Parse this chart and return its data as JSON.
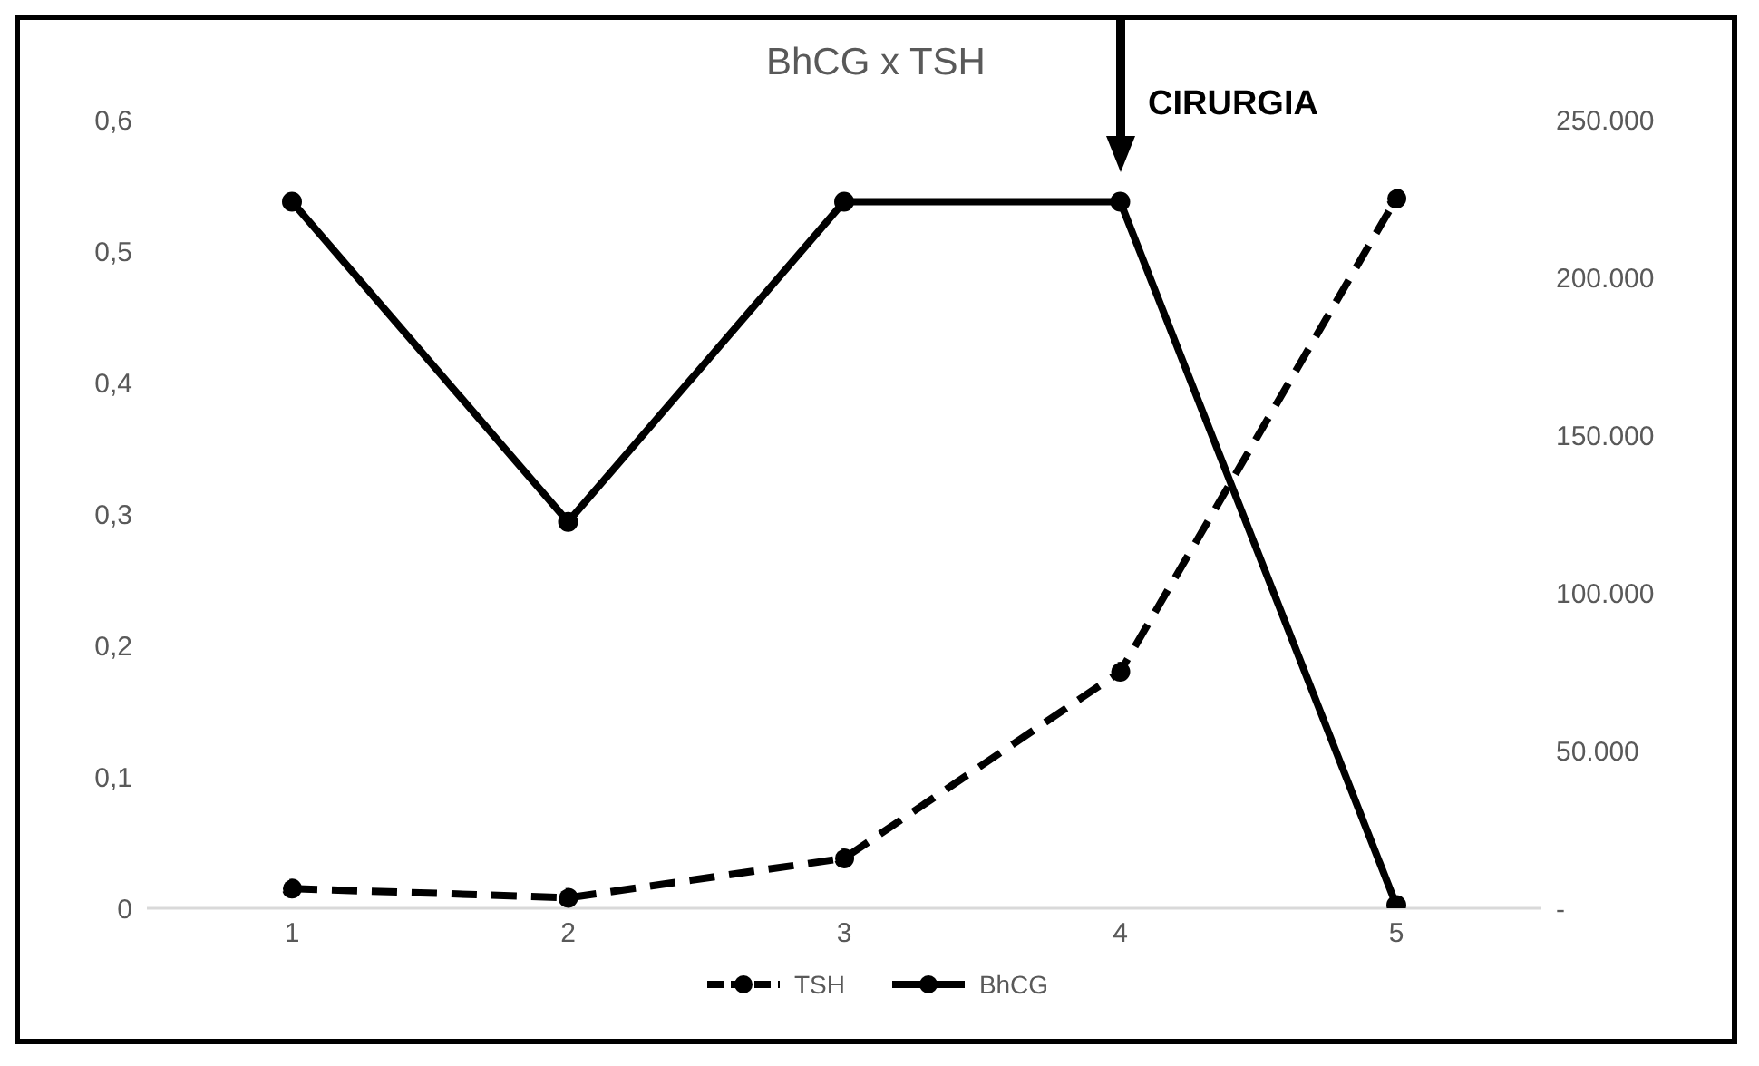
{
  "chart_data": {
    "type": "line",
    "title": "BhCG x TSH",
    "categories": [
      "1",
      "2",
      "3",
      "4",
      "5"
    ],
    "series": [
      {
        "name": "TSH",
        "color": "#000000",
        "line_style": "dashed",
        "values": [
          0.015,
          0.008,
          0.038,
          0.18,
          0.54
        ]
      },
      {
        "name": "BhCG",
        "color": "#000000",
        "line_style": "solid",
        "axis": "y2",
        "values": [
          224000,
          122500,
          224000,
          224000,
          1000
        ]
      }
    ],
    "ylim": [
      0,
      0.6
    ],
    "yticks": [
      {
        "value": 0,
        "label": "0"
      },
      {
        "value": 0.1,
        "label": "0,1"
      },
      {
        "value": 0.2,
        "label": "0,2"
      },
      {
        "value": 0.3,
        "label": "0,3"
      },
      {
        "value": 0.4,
        "label": "0,4"
      },
      {
        "value": 0.5,
        "label": "0,5"
      },
      {
        "value": 0.6,
        "label": "0,6"
      }
    ],
    "y2lim": [
      0,
      250000
    ],
    "y2ticks": [
      {
        "value": 0,
        "label": "-"
      },
      {
        "value": 50000,
        "label": "50.000"
      },
      {
        "value": 100000,
        "label": "100.000"
      },
      {
        "value": 150000,
        "label": "150.000"
      },
      {
        "value": 200000,
        "label": "200.000"
      },
      {
        "value": 250000,
        "label": "250.000"
      }
    ],
    "annotations": [
      "CIRURGIA"
    ],
    "grid": false,
    "legend": "bottom",
    "marker": "circle"
  }
}
